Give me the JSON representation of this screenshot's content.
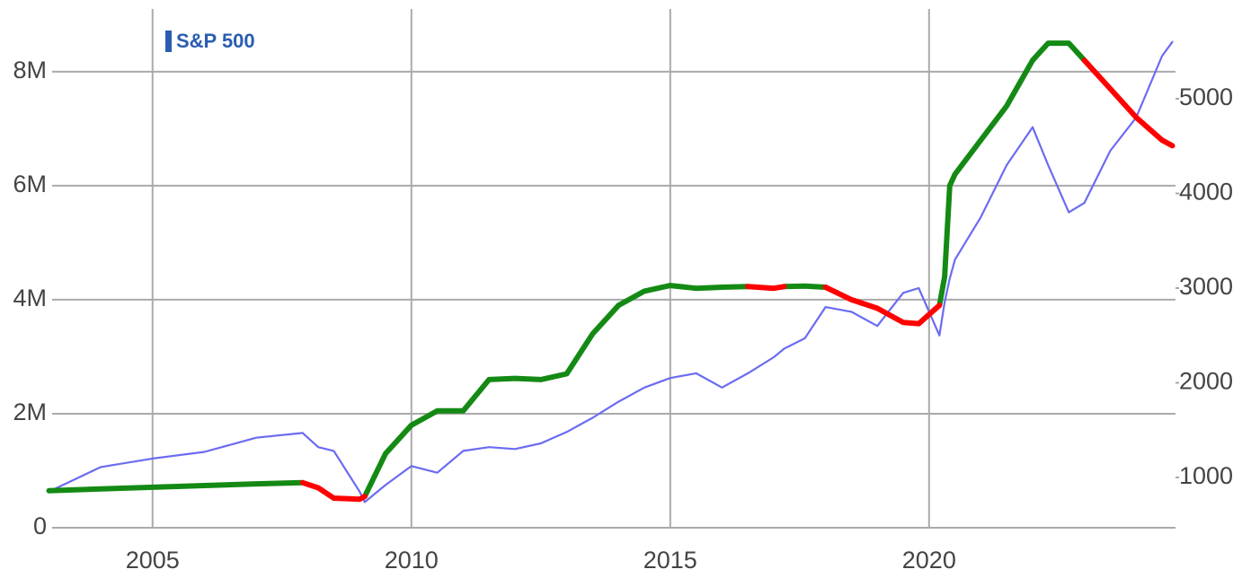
{
  "chart_data": {
    "type": "line",
    "legend": "top-left",
    "grid": true,
    "x": [
      2003,
      2004,
      2005,
      2006,
      2007,
      2007.9,
      2008.2,
      2008.5,
      2009,
      2009.1,
      2009.5,
      2010,
      2010.5,
      2011,
      2011.5,
      2012,
      2012.5,
      2013,
      2013.5,
      2014,
      2014.5,
      2015,
      2015.5,
      2016,
      2016.5,
      2017,
      2017.2,
      2017.6,
      2018,
      2018.5,
      2019,
      2019.5,
      2019.8,
      2020.2,
      2020.3,
      2020.4,
      2020.5,
      2021,
      2021.5,
      2022,
      2022.3,
      2022.7,
      2023,
      2023.5,
      2024,
      2024.5,
      2024.7
    ],
    "xlim": [
      2003.06,
      2024.76
    ],
    "xticks": [
      2005,
      2010,
      2015,
      2020
    ],
    "ylim": [
      0,
      9100000
    ],
    "yticks": [
      0,
      {
        "value": 2000000,
        "label": "2M"
      },
      {
        "value": 4000000,
        "label": "4M"
      },
      {
        "value": 6000000,
        "label": "6M"
      },
      {
        "value": 8000000,
        "label": "8M"
      }
    ],
    "y2lim": [
      469,
      5948
    ],
    "y2ticks": [
      1000,
      2000,
      3000,
      4000,
      5000
    ],
    "series": [
      {
        "color": "#148a14",
        "values": [
          650000,
          680000,
          710000,
          740000,
          770000,
          790000,
          null,
          null,
          null,
          550000,
          1300000,
          1800000,
          2050000,
          2050000,
          2600000,
          2620000,
          2600000,
          2700000,
          3400000,
          3900000,
          4150000,
          4250000,
          4200000,
          4220000,
          4230000,
          null,
          4230000,
          4240000,
          4220000,
          null,
          null,
          null,
          null,
          3900000,
          4400000,
          6000000,
          6200000,
          6800000,
          7400000,
          8200000,
          8500000,
          8500000,
          8200000,
          null,
          null,
          null,
          null
        ]
      },
      {
        "color": "#ff0000",
        "values": [
          null,
          null,
          null,
          null,
          null,
          790000,
          700000,
          520000,
          500000,
          550000,
          null,
          null,
          null,
          null,
          null,
          null,
          null,
          null,
          null,
          null,
          null,
          null,
          null,
          null,
          4230000,
          4200000,
          4230000,
          null,
          4220000,
          4000000,
          3850000,
          3600000,
          3580000,
          3900000,
          null,
          null,
          null,
          null,
          null,
          null,
          null,
          null,
          8200000,
          7700000,
          7200000,
          6800000,
          6700000
        ]
      },
      {
        "name": "S&P 500",
        "color": "#6b6bf2",
        "axis": "y2",
        "values": [
          850,
          1110,
          1200,
          1270,
          1420,
          1470,
          1320,
          1280,
          850,
          740,
          920,
          1120,
          1050,
          1280,
          1320,
          1300,
          1360,
          1480,
          1630,
          1800,
          1950,
          2050,
          2100,
          1950,
          2100,
          2270,
          2360,
          2470,
          2800,
          2750,
          2600,
          2950,
          3000,
          2500,
          2850,
          3100,
          3300,
          3750,
          4300,
          4700,
          4300,
          3800,
          3900,
          4450,
          4800,
          5450,
          5600
        ]
      }
    ]
  }
}
